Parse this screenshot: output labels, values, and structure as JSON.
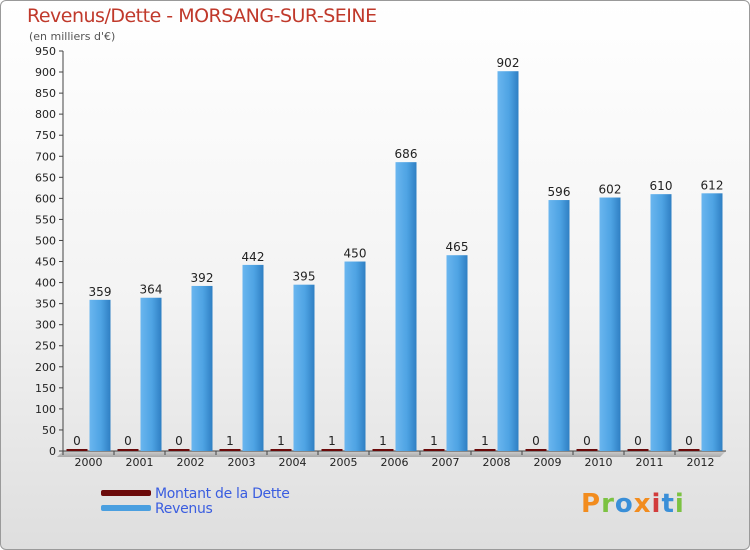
{
  "chart_data": {
    "type": "bar",
    "title": "Revenus/Dette - MORSANG-SUR-SEINE",
    "subtitle": "(en milliers d'€)",
    "categories": [
      "2000",
      "2001",
      "2002",
      "2003",
      "2004",
      "2005",
      "2006",
      "2007",
      "2008",
      "2009",
      "2010",
      "2011",
      "2012"
    ],
    "series": [
      {
        "name": "Montant de la Dette",
        "color": "#6b0a0a",
        "values": [
          0,
          0,
          0,
          1,
          1,
          1,
          1,
          1,
          1,
          0,
          0,
          0,
          0
        ]
      },
      {
        "name": "Revenus",
        "color": "#4a9fe0",
        "values": [
          359,
          364,
          392,
          442,
          395,
          450,
          686,
          465,
          902,
          596,
          602,
          610,
          612
        ]
      }
    ],
    "ylim": [
      0,
      950
    ],
    "yticks": [
      0,
      50,
      100,
      150,
      200,
      250,
      300,
      350,
      400,
      450,
      500,
      550,
      600,
      650,
      700,
      750,
      800,
      850,
      900,
      950
    ],
    "grid": false,
    "legend_position": "bottom-left"
  },
  "branding": {
    "logo_text": "Proxiti",
    "logo_colors": [
      "#f28c1e",
      "#7cc242",
      "#3a8fd8",
      "#f28c1e",
      "#d23c3c",
      "#3a8fd8",
      "#7cc242"
    ]
  }
}
